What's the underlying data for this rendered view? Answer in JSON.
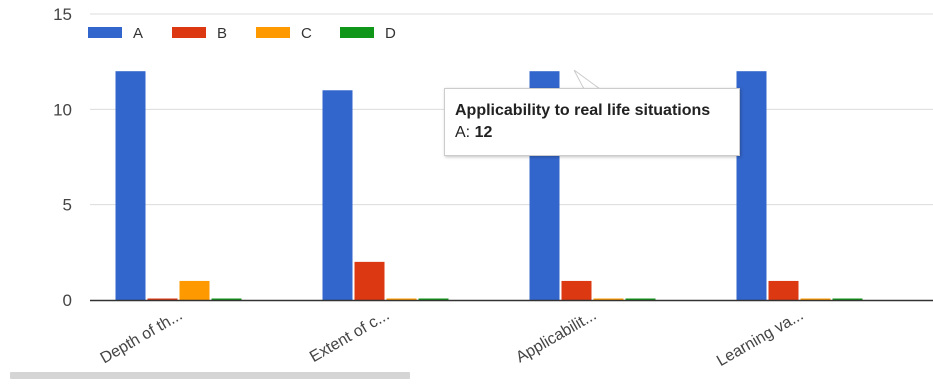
{
  "chart_data": {
    "type": "bar",
    "categories": [
      "Depth of th...",
      "Extent of c...",
      "Applicabilit...",
      "Learning va..."
    ],
    "series": [
      {
        "name": "A",
        "color": "#3366cc",
        "values": [
          12,
          11,
          12,
          12
        ]
      },
      {
        "name": "B",
        "color": "#dc3912",
        "values": [
          0,
          2,
          1,
          1
        ]
      },
      {
        "name": "C",
        "color": "#ff9900",
        "values": [
          1,
          0,
          0,
          0
        ]
      },
      {
        "name": "D",
        "color": "#109618",
        "values": [
          0,
          0,
          0,
          0
        ]
      }
    ],
    "y_ticks": [
      0,
      5,
      10,
      15
    ],
    "ylim": [
      0,
      15
    ],
    "grid": true,
    "legend": "top-left"
  },
  "tooltip": {
    "title": "Applicability to real life situations",
    "series_label": "A:",
    "value": "12"
  }
}
